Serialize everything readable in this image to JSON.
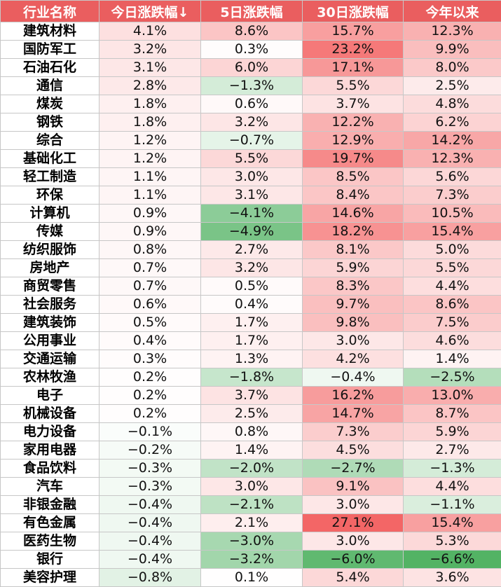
{
  "chart_data": {
    "type": "table",
    "columns": [
      "行业名称",
      "今日涨跌幅↓",
      "5日涨跌幅",
      "30日涨跌幅",
      "今年以来"
    ],
    "colors": {
      "header_bg": "#ea5e5f",
      "positive": "#f25555",
      "negative": "#4aaf5c",
      "neutral": "#ffffff"
    },
    "rows": [
      {
        "name": "建筑材料",
        "values": [
          "4.1%",
          "8.6%",
          "15.7%",
          "12.3%"
        ]
      },
      {
        "name": "国防军工",
        "values": [
          "3.2%",
          "0.3%",
          "23.2%",
          "9.9%"
        ]
      },
      {
        "name": "石油石化",
        "values": [
          "3.1%",
          "6.0%",
          "17.1%",
          "8.0%"
        ]
      },
      {
        "name": "通信",
        "values": [
          "2.8%",
          "−1.3%",
          "5.5%",
          "2.5%"
        ]
      },
      {
        "name": "煤炭",
        "values": [
          "1.8%",
          "0.6%",
          "3.7%",
          "4.8%"
        ]
      },
      {
        "name": "钢铁",
        "values": [
          "1.8%",
          "3.2%",
          "12.2%",
          "6.2%"
        ]
      },
      {
        "name": "综合",
        "values": [
          "1.2%",
          "−0.7%",
          "12.9%",
          "14.2%"
        ]
      },
      {
        "name": "基础化工",
        "values": [
          "1.2%",
          "5.5%",
          "19.7%",
          "12.3%"
        ]
      },
      {
        "name": "轻工制造",
        "values": [
          "1.1%",
          "3.0%",
          "8.5%",
          "5.6%"
        ]
      },
      {
        "name": "环保",
        "values": [
          "1.1%",
          "3.1%",
          "8.4%",
          "7.3%"
        ]
      },
      {
        "name": "计算机",
        "values": [
          "0.9%",
          "−4.1%",
          "14.6%",
          "10.5%"
        ]
      },
      {
        "name": "传媒",
        "values": [
          "0.9%",
          "−4.9%",
          "18.2%",
          "15.4%"
        ]
      },
      {
        "name": "纺织服饰",
        "values": [
          "0.8%",
          "2.7%",
          "8.1%",
          "5.0%"
        ]
      },
      {
        "name": "房地产",
        "values": [
          "0.7%",
          "3.2%",
          "5.9%",
          "5.5%"
        ]
      },
      {
        "name": "商贸零售",
        "values": [
          "0.7%",
          "0.5%",
          "8.3%",
          "4.4%"
        ]
      },
      {
        "name": "社会服务",
        "values": [
          "0.6%",
          "0.4%",
          "9.7%",
          "8.6%"
        ]
      },
      {
        "name": "建筑装饰",
        "values": [
          "0.5%",
          "1.7%",
          "9.8%",
          "7.5%"
        ]
      },
      {
        "name": "公用事业",
        "values": [
          "0.4%",
          "1.7%",
          "3.0%",
          "4.6%"
        ]
      },
      {
        "name": "交通运输",
        "values": [
          "0.3%",
          "1.3%",
          "4.2%",
          "1.4%"
        ]
      },
      {
        "name": "农林牧渔",
        "values": [
          "0.2%",
          "−1.8%",
          "−0.4%",
          "−2.5%"
        ]
      },
      {
        "name": "电子",
        "values": [
          "0.2%",
          "3.7%",
          "16.2%",
          "13.0%"
        ]
      },
      {
        "name": "机械设备",
        "values": [
          "0.2%",
          "2.5%",
          "14.7%",
          "8.7%"
        ]
      },
      {
        "name": "电力设备",
        "values": [
          "−0.1%",
          "0.8%",
          "7.3%",
          "5.9%"
        ]
      },
      {
        "name": "家用电器",
        "values": [
          "−0.2%",
          "1.4%",
          "4.5%",
          "2.7%"
        ]
      },
      {
        "name": "食品饮料",
        "values": [
          "−0.3%",
          "−2.0%",
          "−2.7%",
          "−1.3%"
        ]
      },
      {
        "name": "汽车",
        "values": [
          "−0.3%",
          "3.0%",
          "9.1%",
          "4.4%"
        ]
      },
      {
        "name": "非银金融",
        "values": [
          "−0.4%",
          "−2.1%",
          "3.0%",
          "−1.1%"
        ]
      },
      {
        "name": "有色金属",
        "values": [
          "−0.4%",
          "2.1%",
          "27.1%",
          "15.4%"
        ]
      },
      {
        "name": "医药生物",
        "values": [
          "−0.4%",
          "−3.0%",
          "3.0%",
          "5.3%"
        ]
      },
      {
        "name": "银行",
        "values": [
          "−0.4%",
          "−3.2%",
          "−6.0%",
          "−6.6%"
        ]
      },
      {
        "name": "美容护理",
        "values": [
          "−0.8%",
          "0.1%",
          "5.4%",
          "3.6%"
        ]
      }
    ]
  }
}
